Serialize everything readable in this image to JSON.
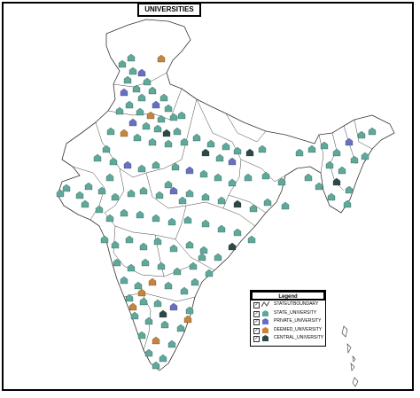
{
  "title": "UNIVERSITIES",
  "legend": {
    "title": "Legend",
    "items": [
      {
        "label": "STATEUTBOUNDARY",
        "icon": "state-boundary-line-icon",
        "color": "#444444"
      },
      {
        "label": "STATE_UNIVERSITY",
        "icon": "state-university-icon",
        "color": "#5fa99b"
      },
      {
        "label": "PRIVATE_UNIVERSITY",
        "icon": "private-university-icon",
        "color": "#6a6fc4"
      },
      {
        "label": "DEEMED_UNIVERSITY",
        "icon": "deemed-university-icon",
        "color": "#c9843a"
      },
      {
        "label": "CENTRAL_UNIVERSITY",
        "icon": "central-university-icon",
        "color": "#2e4747"
      }
    ]
  },
  "colors": {
    "state": "#5fa99b",
    "private": "#6a6fc4",
    "deemed": "#c9843a",
    "central": "#2e4747",
    "boundary": "#444444"
  }
}
